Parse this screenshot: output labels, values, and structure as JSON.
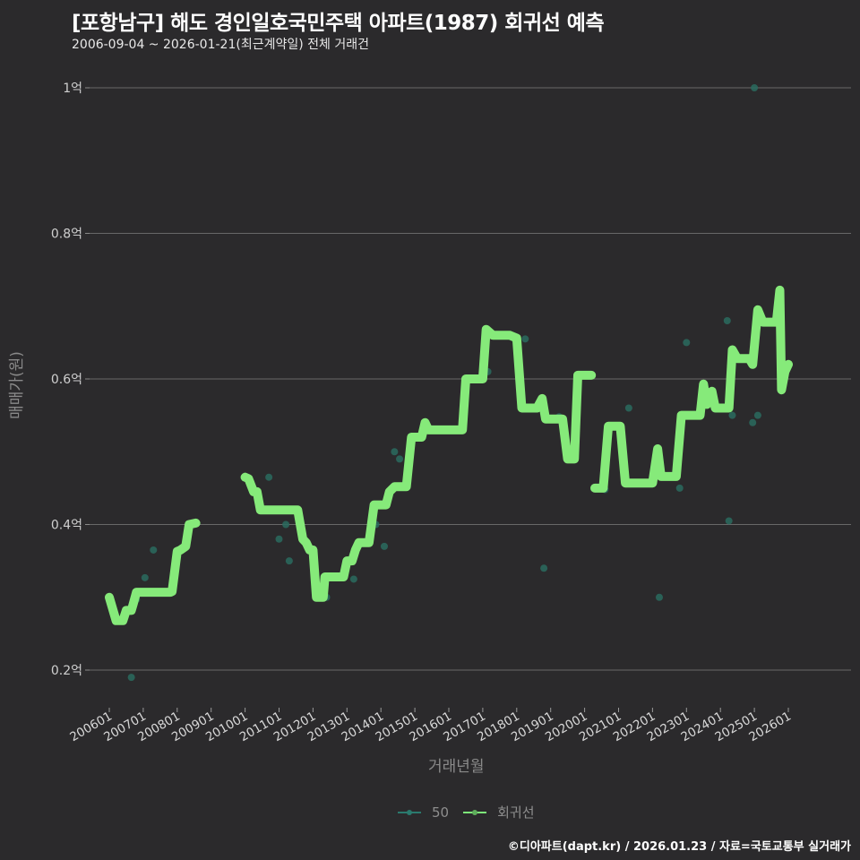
{
  "header": {
    "title": "[포항남구] 해도 경인일호국민주택 아파트(1987) 회귀선 예측",
    "subtitle": "2006-09-04 ~ 2026-01-21(최근계약일) 전체 거래건"
  },
  "footer": {
    "credit": "©디아파트(dapt.kr) / 2026.01.23 / 자료=국토교통부 실거래가"
  },
  "legend": {
    "items": [
      {
        "label": "50",
        "color": "#2a7a6e"
      },
      {
        "label": "회귀선",
        "color": "#7de87a"
      }
    ]
  },
  "colors": {
    "background": "#2b2a2c",
    "regression_line": "#86ea7a",
    "scatter": "#2a6b5f",
    "grid": "#6a6a6a"
  },
  "chart_data": {
    "type": "line",
    "title": "[포항남구] 해도 경인일호국민주택 아파트(1987) 회귀선 예측",
    "subtitle": "2006-09-04 ~ 2026-01-21(최근계약일) 전체 거래건",
    "xlabel": "거래년월",
    "ylabel": "매매가(원)",
    "ylim": [
      0.17,
      1.0
    ],
    "y_unit": "억",
    "yticks": [
      {
        "value": 0.2,
        "label": "0.2억"
      },
      {
        "value": 0.4,
        "label": "0.4억"
      },
      {
        "value": 0.6,
        "label": "0.6억"
      },
      {
        "value": 0.8,
        "label": "0.8억"
      },
      {
        "value": 1.0,
        "label": "1억"
      }
    ],
    "xticks": [
      "200601",
      "200701",
      "200801",
      "200901",
      "201001",
      "201101",
      "201201",
      "201301",
      "201401",
      "201501",
      "201601",
      "201701",
      "201801",
      "201901",
      "202001",
      "202101",
      "202201",
      "202301",
      "202401",
      "202501",
      "202601"
    ],
    "grid": true,
    "legend_position": "bottom",
    "series": [
      {
        "name": "회귀선",
        "type": "line",
        "segments": [
          [
            [
              2006.0,
              0.3
            ],
            [
              2006.2,
              0.268
            ],
            [
              2006.4,
              0.268
            ],
            [
              2006.5,
              0.282
            ],
            [
              2006.65,
              0.282
            ],
            [
              2006.7,
              0.29
            ],
            [
              2006.8,
              0.307
            ],
            [
              2007.8,
              0.307
            ],
            [
              2007.85,
              0.308
            ],
            [
              2008.0,
              0.363
            ],
            [
              2008.1,
              0.365
            ],
            [
              2008.25,
              0.37
            ],
            [
              2008.35,
              0.4
            ],
            [
              2008.55,
              0.402
            ]
          ],
          [
            [
              2010.0,
              0.465
            ],
            [
              2010.1,
              0.463
            ],
            [
              2010.25,
              0.445
            ],
            [
              2010.35,
              0.445
            ],
            [
              2010.45,
              0.42
            ],
            [
              2011.55,
              0.42
            ],
            [
              2011.7,
              0.38
            ],
            [
              2011.8,
              0.375
            ],
            [
              2011.9,
              0.365
            ],
            [
              2012.0,
              0.365
            ],
            [
              2012.1,
              0.3
            ],
            [
              2012.3,
              0.3
            ],
            [
              2012.35,
              0.328
            ],
            [
              2012.9,
              0.328
            ],
            [
              2013.0,
              0.35
            ],
            [
              2013.15,
              0.35
            ],
            [
              2013.25,
              0.365
            ],
            [
              2013.35,
              0.375
            ],
            [
              2013.65,
              0.375
            ],
            [
              2013.8,
              0.427
            ],
            [
              2014.15,
              0.427
            ],
            [
              2014.25,
              0.445
            ],
            [
              2014.4,
              0.452
            ],
            [
              2014.75,
              0.452
            ],
            [
              2014.9,
              0.52
            ],
            [
              2015.2,
              0.52
            ],
            [
              2015.3,
              0.54
            ],
            [
              2015.4,
              0.53
            ],
            [
              2016.4,
              0.53
            ],
            [
              2016.5,
              0.6
            ],
            [
              2017.0,
              0.6
            ],
            [
              2017.1,
              0.668
            ],
            [
              2017.3,
              0.66
            ],
            [
              2017.8,
              0.66
            ],
            [
              2018.0,
              0.656
            ],
            [
              2018.15,
              0.56
            ],
            [
              2018.6,
              0.56
            ],
            [
              2018.75,
              0.573
            ],
            [
              2018.85,
              0.545
            ],
            [
              2019.35,
              0.545
            ],
            [
              2019.5,
              0.49
            ],
            [
              2019.7,
              0.49
            ],
            [
              2019.8,
              0.605
            ],
            [
              2020.2,
              0.605
            ]
          ],
          [
            [
              2020.3,
              0.45
            ],
            [
              2020.55,
              0.45
            ],
            [
              2020.7,
              0.535
            ],
            [
              2021.05,
              0.535
            ],
            [
              2021.2,
              0.457
            ],
            [
              2022.0,
              0.457
            ],
            [
              2022.15,
              0.504
            ],
            [
              2022.25,
              0.466
            ],
            [
              2022.7,
              0.466
            ],
            [
              2022.85,
              0.55
            ],
            [
              2023.4,
              0.55
            ],
            [
              2023.5,
              0.593
            ],
            [
              2023.6,
              0.565
            ],
            [
              2023.75,
              0.583
            ],
            [
              2023.85,
              0.56
            ],
            [
              2024.25,
              0.56
            ],
            [
              2024.35,
              0.64
            ],
            [
              2024.5,
              0.628
            ],
            [
              2024.85,
              0.628
            ],
            [
              2024.95,
              0.62
            ],
            [
              2025.1,
              0.695
            ],
            [
              2025.25,
              0.678
            ],
            [
              2025.65,
              0.678
            ],
            [
              2025.75,
              0.722
            ],
            [
              2025.8,
              0.585
            ],
            [
              2025.9,
              0.61
            ],
            [
              2026.0,
              0.62
            ]
          ]
        ]
      },
      {
        "name": "50",
        "type": "scatter",
        "points": [
          [
            2006.65,
            0.19
          ],
          [
            2006.8,
            0.297
          ],
          [
            2007.05,
            0.327
          ],
          [
            2007.3,
            0.365
          ],
          [
            2010.7,
            0.465
          ],
          [
            2011.0,
            0.38
          ],
          [
            2011.2,
            0.4
          ],
          [
            2011.3,
            0.35
          ],
          [
            2012.4,
            0.3
          ],
          [
            2013.2,
            0.325
          ],
          [
            2013.85,
            0.4
          ],
          [
            2014.1,
            0.37
          ],
          [
            2014.4,
            0.5
          ],
          [
            2014.55,
            0.49
          ],
          [
            2017.15,
            0.61
          ],
          [
            2018.25,
            0.655
          ],
          [
            2018.8,
            0.34
          ],
          [
            2019.25,
            0.548
          ],
          [
            2020.6,
            0.448
          ],
          [
            2021.3,
            0.56
          ],
          [
            2022.2,
            0.3
          ],
          [
            2022.8,
            0.45
          ],
          [
            2023.0,
            0.65
          ],
          [
            2024.2,
            0.68
          ],
          [
            2024.25,
            0.405
          ],
          [
            2024.35,
            0.55
          ],
          [
            2024.95,
            0.54
          ],
          [
            2025.1,
            0.55
          ],
          [
            2025.0,
            1.0
          ]
        ]
      }
    ]
  }
}
